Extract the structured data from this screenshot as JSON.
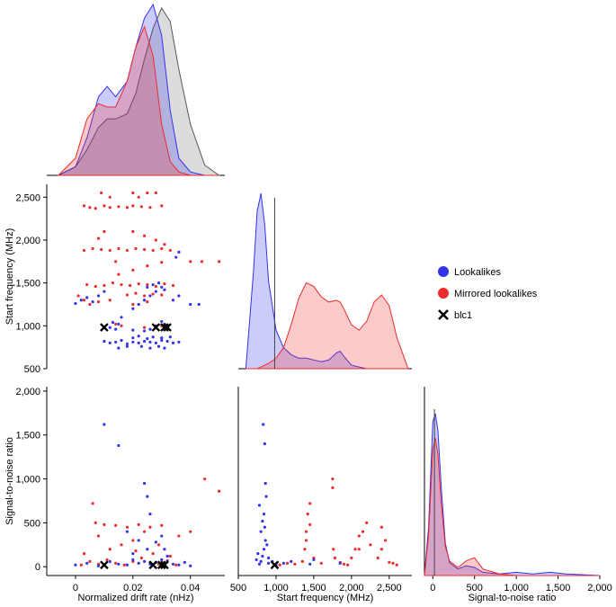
{
  "chart_data": {
    "type": "pairplot",
    "title": "",
    "colors": {
      "lookalikes": "#3333ee",
      "mirrored": "#ee2b2b",
      "blc1": "#000000",
      "kde_gray": "#9a9a9a"
    },
    "legend": {
      "position": "right",
      "entries": [
        {
          "name": "Lookalikes",
          "marker": "circle",
          "color": "#3333ee"
        },
        {
          "name": "Mirrored lookalikes",
          "marker": "circle",
          "color": "#ee2b2b"
        },
        {
          "name": "blc1",
          "marker": "cross",
          "color": "#000000"
        }
      ]
    },
    "axes": {
      "drift": {
        "label": "Normalized drift rate (nHz)",
        "range": [
          -0.01,
          0.052
        ],
        "ticks": [
          0,
          0.02,
          0.04
        ],
        "tick_labels": [
          "0",
          "0.02",
          "0.04"
        ]
      },
      "freq": {
        "label": "Start frequency (MHz)",
        "range": [
          500,
          2800
        ],
        "ticks_x": [
          500,
          1000,
          1500,
          2000,
          2500
        ],
        "tick_labels_x": [
          "500",
          "1,000",
          "1,500",
          "2,000",
          "2,500"
        ],
        "ticks_y": [
          500,
          1000,
          1500,
          2000,
          2500
        ],
        "tick_labels_y": [
          "500",
          "1,000",
          "1,500",
          "2,000",
          "2,500"
        ]
      },
      "snr": {
        "label": "Signal-to-noise ratio",
        "range": [
          -100,
          2000
        ],
        "ticks_x": [
          0,
          500,
          1000,
          1500,
          2000
        ],
        "tick_labels_x": [
          "0",
          "500",
          "1,000",
          "1,500",
          "2,000"
        ],
        "ticks_y": [
          0,
          500,
          1000,
          1500,
          2000
        ],
        "tick_labels_y": [
          "0",
          "500",
          "1,000",
          "1,500",
          "2,000"
        ]
      }
    },
    "diagonal_kde": {
      "drift": {
        "x": [
          -0.006,
          0.0,
          0.004,
          0.008,
          0.011,
          0.014,
          0.018,
          0.021,
          0.024,
          0.027,
          0.03,
          0.033,
          0.036,
          0.04,
          0.045,
          0.05
        ],
        "lookalikes": [
          0.0,
          0.05,
          0.22,
          0.46,
          0.52,
          0.46,
          0.55,
          0.75,
          0.92,
          1.0,
          0.82,
          0.38,
          0.1,
          0.02,
          0.0,
          0.0
        ],
        "mirrored": [
          0.0,
          0.1,
          0.33,
          0.42,
          0.4,
          0.4,
          0.55,
          0.75,
          0.87,
          0.7,
          0.3,
          0.08,
          0.02,
          0.0,
          0.0,
          0.0
        ],
        "blc1_gray": [
          0.0,
          0.05,
          0.15,
          0.28,
          0.33,
          0.33,
          0.36,
          0.48,
          0.68,
          0.86,
          0.98,
          0.9,
          0.62,
          0.3,
          0.06,
          0.0
        ]
      },
      "freq": {
        "x": [
          600,
          700,
          750,
          800,
          850,
          900,
          1000,
          1100,
          1200,
          1300,
          1400,
          1500,
          1600,
          1700,
          1800,
          1850,
          1900,
          2000,
          2100,
          2200,
          2300,
          2400,
          2500,
          2600,
          2750
        ],
        "lookalikes": [
          0.0,
          0.55,
          0.9,
          1.0,
          0.82,
          0.5,
          0.22,
          0.12,
          0.08,
          0.06,
          0.06,
          0.05,
          0.04,
          0.05,
          0.09,
          0.1,
          0.07,
          0.02,
          0.01,
          0.0,
          0.0,
          0.0,
          0.0,
          0.0,
          0.0
        ],
        "mirrored": [
          0.0,
          0.0,
          0.0,
          0.01,
          0.02,
          0.03,
          0.06,
          0.12,
          0.25,
          0.4,
          0.49,
          0.47,
          0.41,
          0.38,
          0.39,
          0.38,
          0.34,
          0.25,
          0.22,
          0.27,
          0.38,
          0.42,
          0.36,
          0.18,
          0.0
        ],
        "blc1_line": 982
      },
      "snr": {
        "x": [
          -100,
          -50,
          0,
          30,
          60,
          100,
          150,
          200,
          300,
          400,
          500,
          600,
          800,
          1000,
          1200,
          1400,
          1600,
          2000
        ],
        "lookalikes": [
          0.0,
          0.3,
          0.95,
          1.0,
          0.9,
          0.55,
          0.2,
          0.08,
          0.04,
          0.06,
          0.05,
          0.02,
          0.01,
          0.02,
          0.01,
          0.02,
          0.01,
          0.0
        ],
        "mirrored": [
          0.0,
          0.25,
          0.78,
          0.85,
          0.75,
          0.45,
          0.18,
          0.09,
          0.05,
          0.09,
          0.11,
          0.04,
          0.01,
          0.0,
          0.0,
          0.0,
          0.0,
          0.0
        ],
        "blc1_line": 20
      }
    },
    "scatter": {
      "lookalikes": [
        [
          0.0,
          1260
        ],
        [
          0.002,
          1300
        ],
        [
          0.004,
          1330
        ],
        [
          0.006,
          1280
        ],
        [
          0.008,
          1350
        ],
        [
          0.01,
          1400
        ],
        [
          0.012,
          980
        ],
        [
          0.014,
          960
        ],
        [
          0.015,
          1020
        ],
        [
          0.013,
          1040
        ],
        [
          0.016,
          1100
        ],
        [
          0.01,
          820
        ],
        [
          0.012,
          800
        ],
        [
          0.014,
          810
        ],
        [
          0.016,
          830
        ],
        [
          0.018,
          790
        ],
        [
          0.02,
          810
        ],
        [
          0.022,
          800
        ],
        [
          0.024,
          820
        ],
        [
          0.026,
          810
        ],
        [
          0.028,
          800
        ],
        [
          0.03,
          830
        ],
        [
          0.032,
          820
        ],
        [
          0.034,
          800
        ],
        [
          0.036,
          810
        ],
        [
          0.023,
          760
        ],
        [
          0.026,
          740
        ],
        [
          0.029,
          760
        ],
        [
          0.031,
          740
        ],
        [
          0.02,
          860
        ],
        [
          0.022,
          880
        ],
        [
          0.025,
          850
        ],
        [
          0.027,
          870
        ],
        [
          0.03,
          860
        ],
        [
          0.033,
          870
        ],
        [
          0.02,
          950
        ],
        [
          0.024,
          940
        ],
        [
          0.026,
          960
        ],
        [
          0.028,
          1000
        ],
        [
          0.031,
          1020
        ],
        [
          0.03,
          1050
        ],
        [
          0.02,
          1200
        ],
        [
          0.022,
          1250
        ],
        [
          0.024,
          1300
        ],
        [
          0.026,
          1350
        ],
        [
          0.028,
          1400
        ],
        [
          0.03,
          1450
        ],
        [
          0.034,
          1300
        ],
        [
          0.036,
          1350
        ],
        [
          0.04,
          1250
        ],
        [
          0.043,
          1250
        ],
        [
          0.036,
          1860
        ],
        [
          0.035,
          1800
        ],
        [
          0.025,
          1450
        ],
        [
          0.027,
          1480
        ],
        [
          0.029,
          1500
        ],
        [
          0.031,
          1420
        ],
        [
          0.018,
          760
        ],
        [
          0.015,
          740
        ]
      ],
      "mirrored": [
        [
          0.003,
          2400
        ],
        [
          0.005,
          2380
        ],
        [
          0.007,
          2370
        ],
        [
          0.01,
          2400
        ],
        [
          0.012,
          2380
        ],
        [
          0.015,
          2390
        ],
        [
          0.009,
          2550
        ],
        [
          0.012,
          2500
        ],
        [
          0.018,
          2380
        ],
        [
          0.02,
          2400
        ],
        [
          0.023,
          2390
        ],
        [
          0.026,
          2380
        ],
        [
          0.02,
          2550
        ],
        [
          0.022,
          2500
        ],
        [
          0.025,
          2550
        ],
        [
          0.028,
          2550
        ],
        [
          0.03,
          2400
        ],
        [
          0.003,
          1880
        ],
        [
          0.006,
          1900
        ],
        [
          0.009,
          1890
        ],
        [
          0.012,
          1880
        ],
        [
          0.015,
          1900
        ],
        [
          0.018,
          1880
        ],
        [
          0.021,
          1900
        ],
        [
          0.024,
          1890
        ],
        [
          0.027,
          1880
        ],
        [
          0.03,
          1900
        ],
        [
          0.033,
          1880
        ],
        [
          0.02,
          2100
        ],
        [
          0.024,
          2050
        ],
        [
          0.028,
          2000
        ],
        [
          0.031,
          1950
        ],
        [
          0.008,
          2020
        ],
        [
          0.01,
          2100
        ],
        [
          0.004,
          1480
        ],
        [
          0.007,
          1460
        ],
        [
          0.01,
          1470
        ],
        [
          0.013,
          1500
        ],
        [
          0.016,
          1480
        ],
        [
          0.019,
          1470
        ],
        [
          0.022,
          1490
        ],
        [
          0.025,
          1480
        ],
        [
          0.028,
          1460
        ],
        [
          0.031,
          1490
        ],
        [
          0.034,
          1470
        ],
        [
          0.018,
          1360
        ],
        [
          0.021,
          1380
        ],
        [
          0.024,
          1350
        ],
        [
          0.027,
          1370
        ],
        [
          0.03,
          1360
        ],
        [
          0.005,
          1250
        ],
        [
          0.008,
          1280
        ],
        [
          0.012,
          1300
        ],
        [
          0.02,
          1250
        ],
        [
          0.025,
          1280
        ],
        [
          0.001,
          1350
        ],
        [
          0.003,
          1300
        ],
        [
          0.015,
          1600
        ],
        [
          0.02,
          1650
        ],
        [
          0.025,
          1700
        ],
        [
          0.04,
          1750
        ],
        [
          0.044,
          1750
        ],
        [
          0.05,
          1750
        ],
        [
          0.03,
          1740
        ],
        [
          0.014,
          1750
        ],
        [
          0.014,
          1020
        ],
        [
          0.016,
          1000
        ],
        [
          0.024,
          980
        ],
        [
          0.03,
          1000
        ]
      ],
      "blc1": [
        [
          0.01,
          982
        ],
        [
          0.028,
          982
        ],
        [
          0.031,
          982
        ],
        [
          0.032,
          982
        ]
      ],
      "snr_lookalikes": [
        [
          0.0,
          20
        ],
        [
          0.004,
          40
        ],
        [
          0.008,
          10
        ],
        [
          0.012,
          60
        ],
        [
          0.015,
          30
        ],
        [
          0.018,
          20
        ],
        [
          0.02,
          80
        ],
        [
          0.022,
          40
        ],
        [
          0.024,
          60
        ],
        [
          0.026,
          30
        ],
        [
          0.028,
          50
        ],
        [
          0.03,
          80
        ],
        [
          0.032,
          60
        ],
        [
          0.034,
          30
        ],
        [
          0.036,
          20
        ],
        [
          0.038,
          50
        ],
        [
          0.04,
          10
        ],
        [
          0.02,
          150
        ],
        [
          0.025,
          200
        ],
        [
          0.028,
          280
        ],
        [
          0.03,
          350
        ],
        [
          0.031,
          200
        ],
        [
          0.032,
          120
        ],
        [
          0.024,
          950
        ],
        [
          0.025,
          800
        ],
        [
          0.026,
          600
        ],
        [
          0.015,
          1380
        ],
        [
          0.01,
          1620
        ],
        [
          0.018,
          400
        ],
        [
          0.022,
          300
        ]
      ],
      "snr_mirrored": [
        [
          0.002,
          20
        ],
        [
          0.005,
          60
        ],
        [
          0.008,
          30
        ],
        [
          0.011,
          80
        ],
        [
          0.014,
          40
        ],
        [
          0.017,
          20
        ],
        [
          0.02,
          60
        ],
        [
          0.023,
          100
        ],
        [
          0.026,
          50
        ],
        [
          0.029,
          30
        ],
        [
          0.032,
          70
        ],
        [
          0.035,
          20
        ],
        [
          0.006,
          720
        ],
        [
          0.007,
          500
        ],
        [
          0.01,
          480
        ],
        [
          0.014,
          470
        ],
        [
          0.018,
          450
        ],
        [
          0.022,
          480
        ],
        [
          0.026,
          450
        ],
        [
          0.03,
          470
        ],
        [
          0.04,
          400
        ],
        [
          0.045,
          1000
        ],
        [
          0.05,
          860
        ],
        [
          0.036,
          350
        ],
        [
          0.003,
          150
        ],
        [
          0.012,
          200
        ],
        [
          0.016,
          250
        ],
        [
          0.021,
          180
        ],
        [
          0.027,
          150
        ],
        [
          0.033,
          120
        ],
        [
          0.008,
          350
        ],
        [
          0.02,
          300
        ],
        [
          0.024,
          400
        ],
        [
          0.029,
          250
        ]
      ],
      "snr_blc1": [
        [
          0.01,
          20
        ],
        [
          0.027,
          20
        ],
        [
          0.03,
          20
        ],
        [
          0.031,
          20
        ]
      ],
      "freq_snr_lookalikes": [
        [
          780,
          30
        ],
        [
          800,
          60
        ],
        [
          820,
          120
        ],
        [
          840,
          200
        ],
        [
          860,
          300
        ],
        [
          800,
          400
        ],
        [
          850,
          450
        ],
        [
          820,
          520
        ],
        [
          840,
          600
        ],
        [
          780,
          700
        ],
        [
          870,
          800
        ],
        [
          860,
          950
        ],
        [
          830,
          1620
        ],
        [
          850,
          1400
        ],
        [
          900,
          100
        ],
        [
          880,
          250
        ],
        [
          760,
          150
        ],
        [
          740,
          80
        ],
        [
          1000,
          20
        ],
        [
          1100,
          40
        ],
        [
          1200,
          60
        ],
        [
          1450,
          30
        ],
        [
          1500,
          80
        ],
        [
          1850,
          40
        ],
        [
          900,
          40
        ],
        [
          950,
          60
        ]
      ],
      "freq_snr_mirrored": [
        [
          1050,
          20
        ],
        [
          1150,
          40
        ],
        [
          1250,
          30
        ],
        [
          1350,
          60
        ],
        [
          1380,
          200
        ],
        [
          1400,
          400
        ],
        [
          1420,
          600
        ],
        [
          1450,
          720
        ],
        [
          1450,
          480
        ],
        [
          1400,
          300
        ],
        [
          1500,
          100
        ],
        [
          1600,
          40
        ],
        [
          1750,
          1000
        ],
        [
          1750,
          900
        ],
        [
          1760,
          200
        ],
        [
          1780,
          100
        ],
        [
          1850,
          50
        ],
        [
          1900,
          30
        ],
        [
          1950,
          20
        ],
        [
          2000,
          100
        ],
        [
          2050,
          200
        ],
        [
          2100,
          350
        ],
        [
          2100,
          200
        ],
        [
          2150,
          400
        ],
        [
          2200,
          500
        ],
        [
          2250,
          250
        ],
        [
          2350,
          100
        ],
        [
          2400,
          200
        ],
        [
          2450,
          300
        ],
        [
          2400,
          450
        ],
        [
          2500,
          50
        ],
        [
          2550,
          40
        ],
        [
          2600,
          20
        ]
      ],
      "freq_snr_blc1": [
        [
          982,
          20
        ]
      ]
    }
  }
}
